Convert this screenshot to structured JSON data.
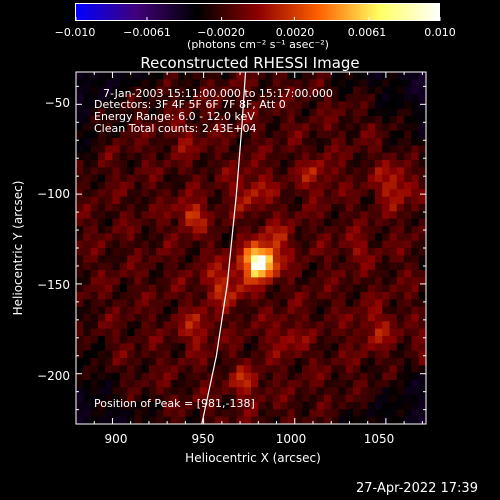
{
  "colorbar": {
    "ticks": [
      "−0.010",
      "−0.0061",
      "−0.0020",
      "0.0020",
      "0.0061",
      "0.010"
    ],
    "tick_values": [
      -0.01,
      -0.0061,
      -0.002,
      0.002,
      0.0061,
      0.01
    ],
    "range": [
      -0.01,
      0.01
    ],
    "unit_label": "(photons cm⁻² s⁻¹ asec⁻²)",
    "colors": [
      "#0000ff",
      "#400078",
      "#000000",
      "#8c0000",
      "#ff6000",
      "#ffff60",
      "#ffffff"
    ]
  },
  "chart_data": {
    "type": "heatmap",
    "title": "Reconstructed RHESSI Image",
    "xlabel": "Heliocentric X (arcsec)",
    "ylabel": "Heliocentric Y (arcsec)",
    "xlim": [
      880,
      1072
    ],
    "ylim": [
      -228,
      -32
    ],
    "xticks": [
      900,
      950,
      1000,
      1050
    ],
    "yticks": [
      -50,
      -100,
      -150,
      -200
    ],
    "xtick_labels": [
      "900",
      "950",
      "1000",
      "1050"
    ],
    "ytick_labels": [
      "−50",
      "−100",
      "−150",
      "−200"
    ],
    "peak": {
      "x": 981,
      "y": -138
    },
    "limb_points": [
      [
        949,
        -228
      ],
      [
        957,
        -190
      ],
      [
        963,
        -150
      ],
      [
        968,
        -100
      ],
      [
        971,
        -62
      ],
      [
        973,
        -32
      ]
    ],
    "annotations": [
      "7-Jan-2003 15:11:00.000 to 15:17:00.000",
      "Detectors: 3F 4F 5F 6F 7F 8F, Att 0",
      "Energy Range: 6.0 - 12.0 keV",
      "Clean     Total counts: 2.43E+04"
    ],
    "peak_label": "Position of Peak = [981,-138]"
  },
  "timestamp": "27-Apr-2022 17:39"
}
